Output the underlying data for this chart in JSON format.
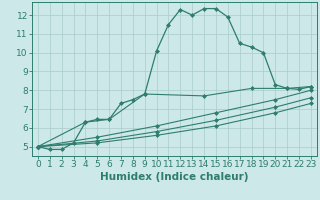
{
  "xlabel": "Humidex (Indice chaleur)",
  "bg_color": "#cce8e8",
  "line_color": "#2e7d6e",
  "grid_color": "#aacccc",
  "xlim": [
    -0.5,
    23.5
  ],
  "ylim": [
    4.5,
    12.7
  ],
  "xticks": [
    0,
    1,
    2,
    3,
    4,
    5,
    6,
    7,
    8,
    9,
    10,
    11,
    12,
    13,
    14,
    15,
    16,
    17,
    18,
    19,
    20,
    21,
    22,
    23
  ],
  "yticks": [
    5,
    6,
    7,
    8,
    9,
    10,
    11,
    12
  ],
  "tick_fontsize": 6.5,
  "label_fontsize": 7.5,
  "series0": {
    "x": [
      0,
      1,
      2,
      3,
      4,
      5,
      6,
      7,
      8,
      9,
      10,
      11,
      12,
      13,
      14,
      15,
      16,
      17,
      18,
      19,
      20,
      21,
      22,
      23
    ],
    "y": [
      5.0,
      4.85,
      4.85,
      5.2,
      6.3,
      6.45,
      6.45,
      7.3,
      7.5,
      7.8,
      10.1,
      11.5,
      12.3,
      12.0,
      12.35,
      12.35,
      11.9,
      10.5,
      10.3,
      10.0,
      8.3,
      8.1,
      8.05,
      8.2
    ]
  },
  "series1": {
    "x": [
      0,
      4,
      6,
      9,
      14,
      18,
      21,
      23
    ],
    "y": [
      5.0,
      6.3,
      6.45,
      7.8,
      7.7,
      8.1,
      8.1,
      8.2
    ]
  },
  "series2": {
    "x": [
      0,
      5,
      10,
      15,
      20,
      23
    ],
    "y": [
      5.0,
      5.5,
      6.1,
      6.8,
      7.5,
      8.0
    ]
  },
  "series3": {
    "x": [
      0,
      5,
      10,
      15,
      20,
      23
    ],
    "y": [
      5.0,
      5.3,
      5.8,
      6.4,
      7.1,
      7.6
    ]
  },
  "series4": {
    "x": [
      0,
      5,
      10,
      15,
      20,
      23
    ],
    "y": [
      5.0,
      5.2,
      5.6,
      6.1,
      6.8,
      7.3
    ]
  }
}
